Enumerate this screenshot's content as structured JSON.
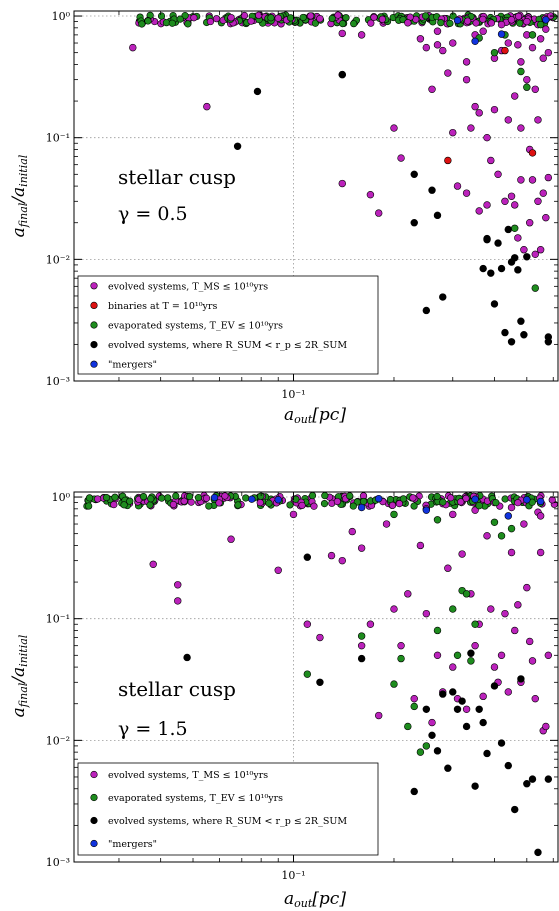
{
  "chart_data": [
    {
      "type": "scatter",
      "annotation": "stellar cusp",
      "gamma_label": "γ = 0.5",
      "xlabel": "a_out[pc]",
      "ylabel": "a_final/a_initial",
      "xscale": "log",
      "yscale": "log",
      "xlim": [
        0.022,
        0.62
      ],
      "ylim": [
        0.001,
        1.1
      ],
      "xticks": [
        {
          "value": 0.1,
          "label": "10⁻¹"
        }
      ],
      "yticks": [
        {
          "value": 0.001,
          "label": "10⁻³"
        },
        {
          "value": 0.01,
          "label": "10⁻²"
        },
        {
          "value": 0.1,
          "label": "10⁻¹"
        },
        {
          "value": 1,
          "label": "10⁰"
        }
      ],
      "grid": true,
      "legend_position": "lower-left",
      "series": [
        {
          "name": "evolved systems, T_MS ≤ 10¹⁰yrs",
          "color": "#bb22bb",
          "points": [
            [
              0.033,
              0.55
            ],
            [
              0.055,
              0.18
            ],
            [
              0.14,
              0.33
            ],
            [
              0.14,
              0.72
            ],
            [
              0.16,
              0.7
            ],
            [
              0.2,
              0.12
            ],
            [
              0.21,
              0.068
            ],
            [
              0.17,
              0.034
            ],
            [
              0.18,
              0.024
            ],
            [
              0.14,
              0.042
            ],
            [
              0.25,
              0.55
            ],
            [
              0.26,
              0.25
            ],
            [
              0.27,
              0.58
            ],
            [
              0.28,
              0.52
            ],
            [
              0.29,
              0.34
            ],
            [
              0.3,
              0.11
            ],
            [
              0.31,
              0.04
            ],
            [
              0.33,
              0.3
            ],
            [
              0.33,
              0.42
            ],
            [
              0.33,
              0.035
            ],
            [
              0.34,
              0.12
            ],
            [
              0.35,
              0.18
            ],
            [
              0.36,
              0.16
            ],
            [
              0.36,
              0.025
            ],
            [
              0.37,
              0.75
            ],
            [
              0.38,
              0.1
            ],
            [
              0.38,
              0.028
            ],
            [
              0.39,
              0.065
            ],
            [
              0.4,
              0.45
            ],
            [
              0.4,
              0.17
            ],
            [
              0.41,
              0.05
            ],
            [
              0.42,
              0.85
            ],
            [
              0.42,
              0.52
            ],
            [
              0.43,
              0.03
            ],
            [
              0.44,
              0.14
            ],
            [
              0.44,
              0.6
            ],
            [
              0.45,
              0.033
            ],
            [
              0.46,
              0.22
            ],
            [
              0.46,
              0.028
            ],
            [
              0.47,
              0.58
            ],
            [
              0.47,
              0.015
            ],
            [
              0.48,
              0.42
            ],
            [
              0.48,
              0.12
            ],
            [
              0.48,
              0.045
            ],
            [
              0.49,
              0.012
            ],
            [
              0.5,
              0.7
            ],
            [
              0.5,
              0.3
            ],
            [
              0.51,
              0.08
            ],
            [
              0.51,
              0.02
            ],
            [
              0.52,
              0.55
            ],
            [
              0.52,
              0.045
            ],
            [
              0.53,
              0.25
            ],
            [
              0.53,
              0.011
            ],
            [
              0.54,
              0.85
            ],
            [
              0.54,
              0.14
            ],
            [
              0.54,
              0.03
            ],
            [
              0.55,
              0.65
            ],
            [
              0.55,
              0.012
            ],
            [
              0.56,
              0.45
            ],
            [
              0.56,
              0.035
            ],
            [
              0.57,
              0.78
            ],
            [
              0.57,
              0.022
            ],
            [
              0.58,
              0.5
            ],
            [
              0.58,
              0.047
            ],
            [
              0.27,
              0.75
            ],
            [
              0.24,
              0.65
            ],
            [
              0.3,
              0.6
            ],
            [
              0.35,
              0.7
            ],
            [
              0.22,
              0.88
            ],
            [
              0.45,
              0.93
            ],
            [
              0.5,
              0.9
            ],
            [
              0.12,
              0.95
            ],
            [
              0.065,
              0.97
            ],
            [
              0.09,
              0.96
            ]
          ]
        },
        {
          "name": "binaries at T = 10¹⁰yrs",
          "color": "#dd1111",
          "points": [
            [
              0.29,
              0.065
            ],
            [
              0.52,
              0.075
            ],
            [
              0.43,
              0.52
            ]
          ]
        },
        {
          "name": "evaporated systems, T_EV ≤ 10¹⁰yrs",
          "color": "#1e8c1e",
          "points": [
            [
              0.5,
              0.26
            ],
            [
              0.53,
              0.0058
            ],
            [
              0.46,
              0.018
            ],
            [
              0.43,
              0.7
            ],
            [
              0.48,
              0.35
            ],
            [
              0.4,
              0.5
            ],
            [
              0.52,
              0.7
            ],
            [
              0.55,
              0.85
            ],
            [
              0.36,
              0.66
            ]
          ]
        },
        {
          "name": "evolved systems, where R_SUM < r_p ≤ 2R_SUM",
          "color": "#000000",
          "points": [
            [
              0.068,
              0.085
            ],
            [
              0.078,
              0.24
            ],
            [
              0.14,
              0.33
            ],
            [
              0.23,
              0.05
            ],
            [
              0.23,
              0.02
            ],
            [
              0.26,
              0.037
            ],
            [
              0.27,
              0.023
            ],
            [
              0.28,
              0.0049
            ],
            [
              0.25,
              0.0038
            ],
            [
              0.37,
              0.0084
            ],
            [
              0.38,
              0.0145
            ],
            [
              0.39,
              0.0077
            ],
            [
              0.4,
              0.0043
            ],
            [
              0.41,
              0.0136
            ],
            [
              0.42,
              0.0084
            ],
            [
              0.43,
              0.0025
            ],
            [
              0.44,
              0.0176
            ],
            [
              0.45,
              0.0095
            ],
            [
              0.46,
              0.0103
            ],
            [
              0.47,
              0.0082
            ],
            [
              0.48,
              0.0031
            ],
            [
              0.49,
              0.0024
            ],
            [
              0.5,
              0.0105
            ],
            [
              0.58,
              0.0023
            ],
            [
              0.58,
              0.0021
            ],
            [
              0.38,
              0.0148
            ],
            [
              0.45,
              0.0021
            ]
          ]
        },
        {
          "name": "\"mergers\"",
          "color": "#1133dd",
          "points": [
            [
              0.31,
              0.92
            ],
            [
              0.35,
              0.62
            ],
            [
              0.42,
              0.71
            ],
            [
              0.57,
              0.93
            ]
          ]
        }
      ],
      "dense_band": {
        "y_range": [
          0.86,
          1.02
        ],
        "x_start": 0.034
      }
    },
    {
      "type": "scatter",
      "annotation": "stellar cusp",
      "gamma_label": "γ = 1.5",
      "xlabel": "a_out[pc]",
      "ylabel": "a_final/a_initial",
      "xscale": "log",
      "yscale": "log",
      "xlim": [
        0.022,
        0.62
      ],
      "ylim": [
        0.001,
        1.1
      ],
      "xticks": [
        {
          "value": 0.1,
          "label": "10⁻¹"
        }
      ],
      "yticks": [
        {
          "value": 0.001,
          "label": "10⁻³"
        },
        {
          "value": 0.01,
          "label": "10⁻²"
        },
        {
          "value": 0.1,
          "label": "10⁻¹"
        },
        {
          "value": 1,
          "label": "10⁰"
        }
      ],
      "grid": true,
      "legend_position": "lower-left",
      "series": [
        {
          "name": "evolved systems, T_MS ≤ 10¹⁰yrs",
          "color": "#bb22bb",
          "points": [
            [
              0.038,
              0.28
            ],
            [
              0.045,
              0.19
            ],
            [
              0.045,
              0.14
            ],
            [
              0.065,
              0.45
            ],
            [
              0.09,
              0.25
            ],
            [
              0.1,
              0.72
            ],
            [
              0.11,
              0.09
            ],
            [
              0.12,
              0.07
            ],
            [
              0.13,
              0.33
            ],
            [
              0.14,
              0.3
            ],
            [
              0.15,
              0.52
            ],
            [
              0.16,
              0.38
            ],
            [
              0.16,
              0.06
            ],
            [
              0.17,
              0.09
            ],
            [
              0.18,
              0.016
            ],
            [
              0.19,
              0.6
            ],
            [
              0.2,
              0.12
            ],
            [
              0.21,
              0.06
            ],
            [
              0.22,
              0.16
            ],
            [
              0.23,
              0.022
            ],
            [
              0.24,
              0.4
            ],
            [
              0.25,
              0.11
            ],
            [
              0.26,
              0.014
            ],
            [
              0.27,
              0.05
            ],
            [
              0.28,
              0.025
            ],
            [
              0.29,
              0.26
            ],
            [
              0.3,
              0.04
            ],
            [
              0.31,
              0.022
            ],
            [
              0.32,
              0.34
            ],
            [
              0.33,
              0.018
            ],
            [
              0.34,
              0.16
            ],
            [
              0.35,
              0.06
            ],
            [
              0.36,
              0.09
            ],
            [
              0.37,
              0.023
            ],
            [
              0.38,
              0.48
            ],
            [
              0.39,
              0.12
            ],
            [
              0.4,
              0.04
            ],
            [
              0.41,
              0.03
            ],
            [
              0.42,
              0.05
            ],
            [
              0.43,
              0.11
            ],
            [
              0.44,
              0.025
            ],
            [
              0.45,
              0.35
            ],
            [
              0.46,
              0.08
            ],
            [
              0.47,
              0.13
            ],
            [
              0.48,
              0.03
            ],
            [
              0.49,
              0.6
            ],
            [
              0.5,
              0.18
            ],
            [
              0.51,
              0.065
            ],
            [
              0.52,
              0.045
            ],
            [
              0.53,
              0.022
            ],
            [
              0.54,
              0.75
            ],
            [
              0.55,
              0.35
            ],
            [
              0.56,
              0.012
            ],
            [
              0.57,
              0.013
            ],
            [
              0.58,
              0.05
            ],
            [
              0.25,
              0.8
            ],
            [
              0.35,
              0.78
            ],
            [
              0.45,
              0.82
            ],
            [
              0.55,
              0.7
            ],
            [
              0.3,
              0.72
            ]
          ]
        },
        {
          "name": "evaporated systems, T_EV ≤ 10¹⁰yrs",
          "color": "#1e8c1e",
          "points": [
            [
              0.11,
              0.035
            ],
            [
              0.16,
              0.072
            ],
            [
              0.2,
              0.029
            ],
            [
              0.21,
              0.047
            ],
            [
              0.22,
              0.013
            ],
            [
              0.23,
              0.019
            ],
            [
              0.24,
              0.008
            ],
            [
              0.25,
              0.009
            ],
            [
              0.27,
              0.08
            ],
            [
              0.3,
              0.12
            ],
            [
              0.31,
              0.05
            ],
            [
              0.32,
              0.17
            ],
            [
              0.33,
              0.16
            ],
            [
              0.34,
              0.045
            ],
            [
              0.35,
              0.09
            ],
            [
              0.4,
              0.62
            ],
            [
              0.42,
              0.48
            ],
            [
              0.45,
              0.55
            ],
            [
              0.27,
              0.65
            ],
            [
              0.2,
              0.72
            ],
            [
              0.36,
              0.85
            ]
          ]
        },
        {
          "name": "evolved systems, where R_SUM < r_p ≤ 2R_SUM",
          "color": "#000000",
          "points": [
            [
              0.048,
              0.048
            ],
            [
              0.11,
              0.32
            ],
            [
              0.12,
              0.03
            ],
            [
              0.16,
              0.047
            ],
            [
              0.23,
              0.0038
            ],
            [
              0.25,
              0.018
            ],
            [
              0.26,
              0.011
            ],
            [
              0.27,
              0.0082
            ],
            [
              0.28,
              0.024
            ],
            [
              0.29,
              0.0059
            ],
            [
              0.3,
              0.025
            ],
            [
              0.31,
              0.018
            ],
            [
              0.32,
              0.021
            ],
            [
              0.33,
              0.013
            ],
            [
              0.34,
              0.052
            ],
            [
              0.35,
              0.0042
            ],
            [
              0.36,
              0.018
            ],
            [
              0.37,
              0.014
            ],
            [
              0.38,
              0.0078
            ],
            [
              0.4,
              0.028
            ],
            [
              0.42,
              0.0095
            ],
            [
              0.44,
              0.0062
            ],
            [
              0.46,
              0.0027
            ],
            [
              0.48,
              0.032
            ],
            [
              0.5,
              0.0044
            ],
            [
              0.52,
              0.0048
            ],
            [
              0.54,
              0.0012
            ],
            [
              0.58,
              0.0048
            ]
          ]
        },
        {
          "name": "\"mergers\"",
          "color": "#1133dd",
          "points": [
            [
              0.058,
              0.99
            ],
            [
              0.075,
              0.96
            ],
            [
              0.09,
              0.95
            ],
            [
              0.16,
              0.82
            ],
            [
              0.18,
              0.97
            ],
            [
              0.25,
              0.78
            ],
            [
              0.35,
              0.96
            ],
            [
              0.44,
              0.7
            ],
            [
              0.5,
              0.95
            ],
            [
              0.55,
              0.92
            ]
          ]
        }
      ],
      "dense_band": {
        "y_range": [
          0.84,
          1.03
        ],
        "x_start": 0.024
      }
    }
  ]
}
